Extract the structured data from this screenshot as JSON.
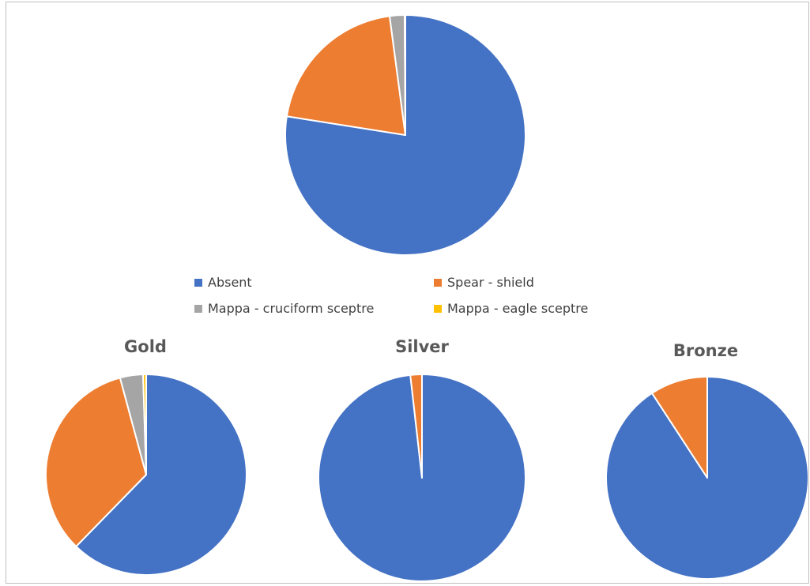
{
  "chart_data": [
    {
      "type": "pie",
      "title": "",
      "categories": [
        "Absent",
        "Spear - shield",
        "Mappa - cruciform sceptre",
        "Mappa - eagle sceptre"
      ],
      "values": [
        77.5,
        20.4,
        2.0,
        0.1
      ]
    },
    {
      "type": "pie",
      "title": "Gold",
      "categories": [
        "Absent",
        "Spear - shield",
        "Mappa - cruciform sceptre",
        "Mappa - eagle sceptre"
      ],
      "values": [
        62.3,
        33.5,
        3.7,
        0.5
      ]
    },
    {
      "type": "pie",
      "title": "Silver",
      "categories": [
        "Absent",
        "Spear - shield",
        "Mappa - cruciform sceptre",
        "Mappa - eagle sceptre"
      ],
      "values": [
        98.2,
        1.8,
        0,
        0
      ]
    },
    {
      "type": "pie",
      "title": "Bronze",
      "categories": [
        "Absent",
        "Spear - shield",
        "Mappa - cruciform sceptre",
        "Mappa - eagle sceptre"
      ],
      "values": [
        90.8,
        9.2,
        0,
        0
      ]
    }
  ],
  "legend": {
    "position": "between top and bottom charts",
    "items": [
      {
        "label": "Absent",
        "color": "#4472C4"
      },
      {
        "label": "Spear - shield",
        "color": "#ED7D31"
      },
      {
        "label": "Mappa - cruciform sceptre",
        "color": "#A5A5A5"
      },
      {
        "label": "Mappa - eagle sceptre",
        "color": "#FFC000"
      }
    ]
  }
}
